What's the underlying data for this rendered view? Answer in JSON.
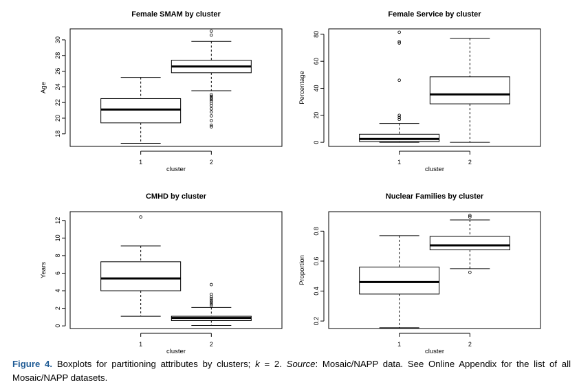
{
  "caption": {
    "figure_label": "Figure 4.",
    "part1": " Boxplots for partitioning attributes by clusters; ",
    "k_var": "k",
    "part2": " = 2. ",
    "source_label": "Source",
    "part3": ": Mosaic/NAPP data. See Online Appendix for the list of all Mosaic/NAPP datasets."
  },
  "chart_data": [
    {
      "type": "boxplot",
      "title": "Female SMAM by cluster",
      "xlabel": "cluster",
      "ylabel": "Age",
      "categories": [
        "1",
        "2"
      ],
      "ylim": [
        16.4,
        31.4
      ],
      "yticks": [
        18,
        20,
        22,
        24,
        26,
        28,
        30
      ],
      "boxes": [
        {
          "category": "1",
          "min": 16.8,
          "q1": 19.4,
          "median": 21.1,
          "q3": 22.5,
          "max": 25.2,
          "outliers": []
        },
        {
          "category": "2",
          "min": 23.5,
          "q1": 25.8,
          "median": 26.6,
          "q3": 27.4,
          "max": 29.8,
          "outliers": [
            31.1,
            30.6,
            23.0,
            22.8,
            22.6,
            22.4,
            22.2,
            21.9,
            21.6,
            21.2,
            20.8,
            20.3,
            19.7,
            19.1,
            18.9
          ]
        }
      ]
    },
    {
      "type": "boxplot",
      "title": "Female Service by cluster",
      "xlabel": "cluster",
      "ylabel": "Percentage",
      "categories": [
        "1",
        "2"
      ],
      "ylim": [
        -3,
        84
      ],
      "yticks": [
        0,
        20,
        40,
        60,
        80
      ],
      "boxes": [
        {
          "category": "1",
          "min": 0,
          "q1": 0.6,
          "median": 2.5,
          "q3": 6,
          "max": 14,
          "outliers": [
            81.5,
            74.5,
            73.5,
            46,
            20,
            18.5,
            17
          ]
        },
        {
          "category": "2",
          "min": 0,
          "q1": 28.5,
          "median": 35.5,
          "q3": 48.5,
          "max": 77,
          "outliers": []
        }
      ]
    },
    {
      "type": "boxplot",
      "title": "CMHD by cluster",
      "xlabel": "cluster",
      "ylabel": "Years",
      "categories": [
        "1",
        "2"
      ],
      "ylim": [
        -0.3,
        13.0
      ],
      "yticks": [
        0,
        2,
        4,
        6,
        8,
        10,
        12
      ],
      "boxes": [
        {
          "category": "1",
          "min": 1.1,
          "q1": 4.0,
          "median": 5.4,
          "q3": 7.3,
          "max": 9.1,
          "outliers": [
            12.4
          ]
        },
        {
          "category": "2",
          "min": 0.05,
          "q1": 0.6,
          "median": 0.9,
          "q3": 1.1,
          "max": 2.1,
          "outliers": [
            4.7,
            3.6,
            3.3,
            3.1,
            2.9,
            2.7,
            2.5,
            2.3
          ]
        }
      ]
    },
    {
      "type": "boxplot",
      "title": "Nuclear Families by cluster",
      "xlabel": "cluster",
      "ylabel": "Proportion",
      "categories": [
        "1",
        "2"
      ],
      "ylim": [
        0.15,
        0.93
      ],
      "yticks": [
        0.2,
        0.4,
        0.6,
        0.8
      ],
      "boxes": [
        {
          "category": "1",
          "min": 0.155,
          "q1": 0.38,
          "median": 0.46,
          "q3": 0.56,
          "max": 0.77,
          "outliers": []
        },
        {
          "category": "2",
          "min": 0.55,
          "q1": 0.675,
          "median": 0.705,
          "q3": 0.765,
          "max": 0.875,
          "outliers": [
            0.905,
            0.895,
            0.525
          ]
        }
      ]
    }
  ]
}
